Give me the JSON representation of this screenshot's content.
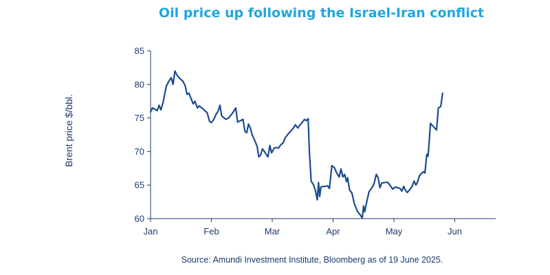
{
  "chart_data": {
    "type": "line",
    "title": "Oil price up following the Israel-Iran conflict",
    "xlabel": "",
    "ylabel": "Brent price $/bbl.",
    "source": "Source: Amundi Investment Institute, Bloomberg as of 19 June 2025.",
    "ylim": [
      60,
      85
    ],
    "yticks": [
      60,
      65,
      70,
      75,
      80,
      85
    ],
    "xlim": [
      0,
      5.67
    ],
    "xticks": [
      {
        "label": "Jan",
        "value": 0
      },
      {
        "label": "Feb",
        "value": 1
      },
      {
        "label": "Mar",
        "value": 2
      },
      {
        "label": "Apr",
        "value": 3
      },
      {
        "label": "May",
        "value": 4
      },
      {
        "label": "Jun",
        "value": 5
      }
    ],
    "series": [
      {
        "name": "Brent",
        "color": "#1a4a8f",
        "points": [
          [
            0.0,
            75.9
          ],
          [
            0.03,
            76.5
          ],
          [
            0.07,
            76.3
          ],
          [
            0.11,
            76.1
          ],
          [
            0.14,
            76.9
          ],
          [
            0.17,
            76.2
          ],
          [
            0.21,
            77.5
          ],
          [
            0.26,
            79.8
          ],
          [
            0.31,
            80.6
          ],
          [
            0.34,
            81.0
          ],
          [
            0.37,
            80.0
          ],
          [
            0.4,
            82.0
          ],
          [
            0.44,
            81.3
          ],
          [
            0.49,
            80.8
          ],
          [
            0.53,
            80.5
          ],
          [
            0.57,
            79.8
          ],
          [
            0.6,
            78.5
          ],
          [
            0.63,
            78.7
          ],
          [
            0.67,
            77.8
          ],
          [
            0.7,
            77.1
          ],
          [
            0.73,
            77.5
          ],
          [
            0.77,
            76.5
          ],
          [
            0.8,
            76.8
          ],
          [
            0.84,
            76.5
          ],
          [
            0.87,
            76.3
          ],
          [
            0.9,
            76.0
          ],
          [
            0.93,
            75.8
          ],
          [
            0.97,
            74.5
          ],
          [
            1.0,
            74.3
          ],
          [
            1.04,
            74.8
          ],
          [
            1.08,
            75.6
          ],
          [
            1.11,
            76.0
          ],
          [
            1.14,
            76.9
          ],
          [
            1.17,
            75.3
          ],
          [
            1.21,
            75.0
          ],
          [
            1.24,
            74.8
          ],
          [
            1.28,
            75.0
          ],
          [
            1.32,
            75.4
          ],
          [
            1.36,
            75.9
          ],
          [
            1.4,
            76.5
          ],
          [
            1.43,
            74.4
          ],
          [
            1.48,
            74.6
          ],
          [
            1.52,
            74.8
          ],
          [
            1.55,
            73.0
          ],
          [
            1.58,
            72.8
          ],
          [
            1.61,
            74.1
          ],
          [
            1.64,
            73.5
          ],
          [
            1.67,
            72.5
          ],
          [
            1.71,
            71.7
          ],
          [
            1.75,
            70.8
          ],
          [
            1.78,
            69.2
          ],
          [
            1.81,
            69.5
          ],
          [
            1.84,
            70.4
          ],
          [
            1.87,
            70.0
          ],
          [
            1.9,
            69.6
          ],
          [
            1.93,
            69.2
          ],
          [
            1.96,
            70.9
          ],
          [
            1.99,
            69.8
          ],
          [
            2.03,
            70.5
          ],
          [
            2.06,
            70.6
          ],
          [
            2.1,
            70.5
          ],
          [
            2.14,
            71.0
          ],
          [
            2.18,
            71.3
          ],
          [
            2.21,
            72.0
          ],
          [
            2.25,
            72.5
          ],
          [
            2.3,
            73.0
          ],
          [
            2.34,
            73.4
          ],
          [
            2.38,
            74.0
          ],
          [
            2.42,
            73.5
          ],
          [
            2.45,
            73.9
          ],
          [
            2.49,
            74.3
          ],
          [
            2.53,
            74.8
          ],
          [
            2.56,
            74.6
          ],
          [
            2.59,
            74.9
          ],
          [
            2.61,
            70.0
          ],
          [
            2.64,
            65.6
          ],
          [
            2.68,
            65.0
          ],
          [
            2.71,
            64.2
          ],
          [
            2.74,
            62.8
          ],
          [
            2.76,
            65.4
          ],
          [
            2.78,
            63.3
          ],
          [
            2.8,
            64.7
          ],
          [
            2.83,
            64.8
          ],
          [
            2.87,
            64.8
          ],
          [
            2.91,
            64.9
          ],
          [
            2.94,
            64.5
          ],
          [
            2.98,
            67.9
          ],
          [
            3.02,
            67.6
          ],
          [
            3.06,
            66.8
          ],
          [
            3.1,
            66.2
          ],
          [
            3.13,
            67.4
          ],
          [
            3.16,
            66.2
          ],
          [
            3.19,
            66.6
          ],
          [
            3.22,
            65.5
          ],
          [
            3.24,
            66.1
          ],
          [
            3.27,
            64.3
          ],
          [
            3.31,
            63.8
          ],
          [
            3.35,
            62.2
          ],
          [
            3.4,
            61.1
          ],
          [
            3.45,
            60.5
          ],
          [
            3.48,
            60.1
          ],
          [
            3.5,
            61.9
          ],
          [
            3.52,
            61.0
          ],
          [
            3.55,
            62.4
          ],
          [
            3.59,
            64.0
          ],
          [
            3.63,
            64.5
          ],
          [
            3.67,
            65.1
          ],
          [
            3.71,
            66.6
          ],
          [
            3.74,
            66.1
          ],
          [
            3.77,
            64.6
          ],
          [
            3.8,
            65.3
          ],
          [
            3.85,
            65.4
          ],
          [
            3.9,
            65.4
          ],
          [
            3.95,
            64.8
          ],
          [
            3.98,
            64.4
          ],
          [
            4.02,
            64.7
          ],
          [
            4.07,
            64.6
          ],
          [
            4.1,
            64.5
          ],
          [
            4.13,
            64.1
          ],
          [
            4.16,
            64.8
          ],
          [
            4.19,
            64.2
          ],
          [
            4.22,
            63.9
          ],
          [
            4.26,
            64.3
          ],
          [
            4.3,
            64.8
          ],
          [
            4.33,
            65.6
          ],
          [
            4.36,
            65.0
          ],
          [
            4.39,
            65.5
          ],
          [
            4.42,
            66.4
          ],
          [
            4.46,
            66.8
          ],
          [
            4.49,
            67.0
          ],
          [
            4.51,
            66.8
          ],
          [
            4.54,
            69.6
          ],
          [
            4.56,
            69.3
          ],
          [
            4.58,
            71.5
          ],
          [
            4.6,
            74.2
          ],
          [
            4.64,
            73.8
          ],
          [
            4.67,
            73.5
          ],
          [
            4.7,
            73.2
          ],
          [
            4.73,
            76.5
          ],
          [
            4.77,
            76.7
          ],
          [
            4.8,
            78.7
          ]
        ]
      }
    ]
  }
}
